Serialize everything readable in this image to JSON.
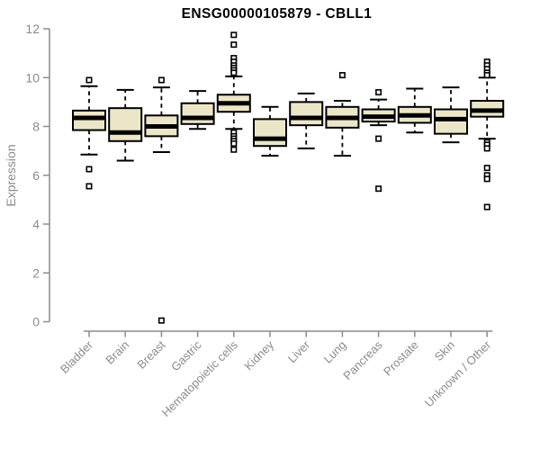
{
  "chart_data": {
    "type": "boxplot",
    "title": "ENSG00000105879 - CBLL1",
    "ylabel": "Expression",
    "xlabel": "",
    "ylim": [
      0,
      12
    ],
    "yticks": [
      0,
      2,
      4,
      6,
      8,
      10,
      12
    ],
    "grid": false,
    "legend_position": "none",
    "categories": [
      "Bladder",
      "Brain",
      "Breast",
      "Gastric",
      "Hematopoietic cells",
      "Kidney",
      "Liver",
      "Lung",
      "Pancreas",
      "Prostate",
      "Skin",
      "Unknown / Other"
    ],
    "series": [
      {
        "name": "Bladder",
        "whisker_low": 6.85,
        "q1": 7.85,
        "median": 8.35,
        "q3": 8.65,
        "whisker_high": 9.65,
        "outliers": [
          9.9,
          6.25,
          5.55
        ]
      },
      {
        "name": "Brain",
        "whisker_low": 6.6,
        "q1": 7.4,
        "median": 7.75,
        "q3": 8.75,
        "whisker_high": 9.5,
        "outliers": []
      },
      {
        "name": "Breast",
        "whisker_low": 6.95,
        "q1": 7.6,
        "median": 8.0,
        "q3": 8.45,
        "whisker_high": 9.6,
        "outliers": [
          9.9,
          0.05
        ]
      },
      {
        "name": "Gastric",
        "whisker_low": 7.9,
        "q1": 8.1,
        "median": 8.35,
        "q3": 8.95,
        "whisker_high": 9.45,
        "outliers": []
      },
      {
        "name": "Hematopoietic cells",
        "whisker_low": 7.9,
        "q1": 8.6,
        "median": 8.95,
        "q3": 9.3,
        "whisker_high": 10.05,
        "outliers": [
          11.75,
          11.35,
          10.8,
          10.65,
          10.5,
          10.4,
          10.3,
          10.2,
          7.75,
          7.6,
          7.5,
          7.4,
          7.3,
          7.05
        ]
      },
      {
        "name": "Kidney",
        "whisker_low": 6.8,
        "q1": 7.2,
        "median": 7.5,
        "q3": 8.3,
        "whisker_high": 8.8,
        "outliers": []
      },
      {
        "name": "Liver",
        "whisker_low": 7.1,
        "q1": 8.05,
        "median": 8.35,
        "q3": 9.0,
        "whisker_high": 9.35,
        "outliers": []
      },
      {
        "name": "Lung",
        "whisker_low": 6.8,
        "q1": 7.95,
        "median": 8.35,
        "q3": 8.8,
        "whisker_high": 9.05,
        "outliers": [
          10.1
        ]
      },
      {
        "name": "Pancreas",
        "whisker_low": 8.05,
        "q1": 8.2,
        "median": 8.4,
        "q3": 8.7,
        "whisker_high": 9.1,
        "outliers": [
          9.4,
          7.5,
          5.45
        ]
      },
      {
        "name": "Prostate",
        "whisker_low": 7.75,
        "q1": 8.15,
        "median": 8.45,
        "q3": 8.8,
        "whisker_high": 9.55,
        "outliers": []
      },
      {
        "name": "Skin",
        "whisker_low": 7.35,
        "q1": 7.7,
        "median": 8.3,
        "q3": 8.7,
        "whisker_high": 9.6,
        "outliers": []
      },
      {
        "name": "Unknown / Other",
        "whisker_low": 7.5,
        "q1": 8.4,
        "median": 8.65,
        "q3": 9.05,
        "whisker_high": 10.0,
        "outliers": [
          10.65,
          10.5,
          10.35,
          10.2,
          10.1,
          7.35,
          7.25,
          7.1,
          6.3,
          6.0,
          5.85,
          4.7
        ]
      }
    ],
    "colors": {
      "box_fill": "#ece6c9",
      "box_stroke": "#000000",
      "median": "#000000",
      "whisker": "#000000",
      "outlier_stroke": "#000000",
      "outlier_fill": "#ffffff",
      "axis": "#8c8c8c",
      "tick_label": "#8c8c8c",
      "title": "#000000",
      "background": "#ffffff"
    }
  }
}
